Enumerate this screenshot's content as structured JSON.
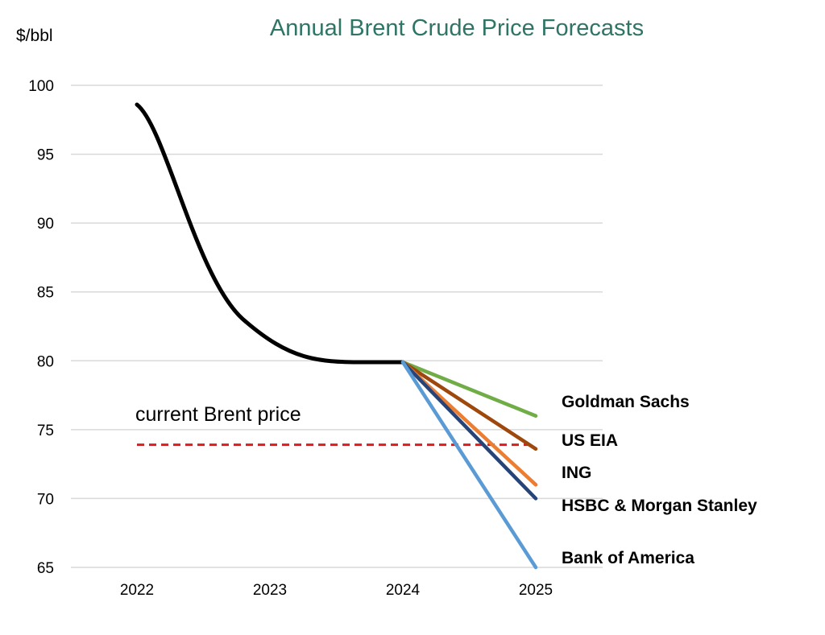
{
  "chart_data": {
    "type": "line",
    "title": "Annual Brent Crude Price Forecasts",
    "ylabel": "$/bbl",
    "xlabel": "",
    "ylim": [
      65,
      100
    ],
    "yticks": [
      100,
      95,
      90,
      85,
      80,
      75,
      70,
      65
    ],
    "x": [
      2022,
      2023,
      2024,
      2025
    ],
    "xtick_labels": [
      "2022",
      "2023",
      "2024",
      "2025"
    ],
    "grid": "horizontal",
    "history": {
      "x": [
        2022,
        2023,
        2024
      ],
      "y": [
        98.6,
        82.0,
        79.9
      ],
      "color": "#000000"
    },
    "forecasts": [
      {
        "name": "Goldman Sachs",
        "start": 79.9,
        "end": 76.0,
        "color": "#70ad47"
      },
      {
        "name": "US EIA",
        "start": 79.9,
        "end": 73.6,
        "color": "#9e480e"
      },
      {
        "name": "ING",
        "start": 79.9,
        "end": 71.0,
        "color": "#ed7d31"
      },
      {
        "name": "HSBC & Morgan Stanley",
        "start": 79.9,
        "end": 70.0,
        "color": "#264478"
      },
      {
        "name": "Bank of America",
        "start": 79.9,
        "end": 65.0,
        "color": "#5b9bd5"
      }
    ],
    "reference": {
      "label": "current Brent price",
      "value": 73.9,
      "color": "#e31a1c"
    },
    "colors": {
      "title": "#2e7566",
      "grid": "#d9d9d9"
    }
  }
}
